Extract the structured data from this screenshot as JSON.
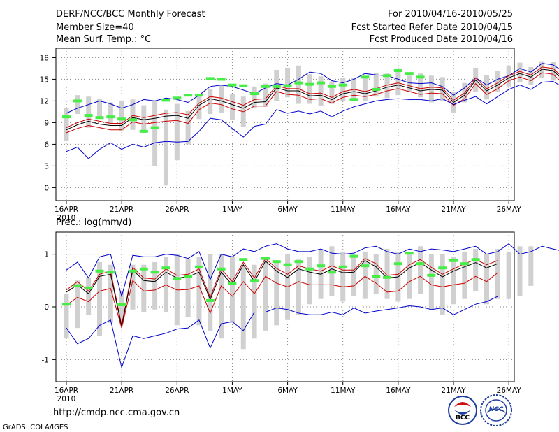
{
  "header": {
    "title": "DERF/NCC/BCC Monthly Forecast",
    "member_size": "Member Size=40",
    "variable_top": "Mean Surf. Temp.: °C",
    "forecast_period": "For 2010/04/16-2010/05/25",
    "refer_date": "Fcst Started Refer Date 2010/04/15",
    "produced_date": "Fcst Produced Date 2010/04/16"
  },
  "panel_bottom_label": "Prec.: log(mm/d)",
  "footer": {
    "url": "http://cmdp.ncc.cma.gov.cn",
    "credit": "GrADS: COLA/IGES",
    "logo_bcc_text": "BCC",
    "logo_ncc_text": "NCC"
  },
  "colors": {
    "ensemble_bar": "#d0d0d0",
    "spread_line": "#0000cc",
    "std_line": "#cc0000",
    "mean_line": "#000000",
    "obs_marker": "#44ee44",
    "grid": "#888888",
    "logo_blue": "#1f3fa0",
    "logo_red": "#d01010"
  },
  "chart_data": [
    {
      "type": "line",
      "title": "Mean Surf. Temp.: °C",
      "x_ticks": [
        "16APR",
        "21APR",
        "26APR",
        "1MAY",
        "6MAY",
        "11MAY",
        "16MAY",
        "21MAY",
        "26MAY"
      ],
      "x_tick_sub": "2010",
      "ylim": [
        -1.8,
        19.3
      ],
      "y_ticks": [
        0,
        3,
        6,
        9,
        12,
        15,
        18
      ],
      "grid": true,
      "days": 40,
      "series": [
        {
          "name": "max",
          "values": [
            10.3,
            11.0,
            11.5,
            12.0,
            11.6,
            11.0,
            11.5,
            12.2,
            12.0,
            12.4,
            12.2,
            11.8,
            12.8,
            14.0,
            14.2,
            14.0,
            13.5,
            13.0,
            13.8,
            14.4,
            14.2,
            15.0,
            16.0,
            15.8,
            14.8,
            14.5,
            15.0,
            15.8,
            15.6,
            15.5,
            15.0,
            14.5,
            14.4,
            14.5,
            14.0,
            12.8,
            13.8,
            15.2,
            14.2,
            15.0,
            15.5,
            16.5,
            16.0,
            17.2,
            17.0,
            16.0
          ]
        },
        {
          "name": "upper",
          "values": [
            8.3,
            9.0,
            9.5,
            9.2,
            8.9,
            8.9,
            10.0,
            9.7,
            10.0,
            10.3,
            10.4,
            10.1,
            11.7,
            12.6,
            12.4,
            11.9,
            11.4,
            12.2,
            12.3,
            14.1,
            13.7,
            13.7,
            13.0,
            13.1,
            12.5,
            13.3,
            13.6,
            13.3,
            13.7,
            14.2,
            14.5,
            14.1,
            13.7,
            13.9,
            13.8,
            12.1,
            13.1,
            15.2,
            13.7,
            14.5,
            15.5,
            16.1,
            15.6,
            16.7,
            16.5,
            15.1
          ]
        },
        {
          "name": "mean",
          "values": [
            8.0,
            8.7,
            9.2,
            8.8,
            8.6,
            8.6,
            9.7,
            9.4,
            9.6,
            9.9,
            10.0,
            9.6,
            11.4,
            12.3,
            12.0,
            11.5,
            11.0,
            11.8,
            11.9,
            13.8,
            13.4,
            13.4,
            12.7,
            12.8,
            12.2,
            13.0,
            13.3,
            13.0,
            13.4,
            13.9,
            14.2,
            13.8,
            13.4,
            13.6,
            13.5,
            11.8,
            12.8,
            14.9,
            13.4,
            14.2,
            15.2,
            15.8,
            15.3,
            16.4,
            16.2,
            14.8
          ]
        },
        {
          "name": "lower",
          "values": [
            7.6,
            8.2,
            8.6,
            8.3,
            8.0,
            8.0,
            9.1,
            8.8,
            9.0,
            9.2,
            9.3,
            8.9,
            10.8,
            11.7,
            11.5,
            10.9,
            10.5,
            11.3,
            11.3,
            13.3,
            12.9,
            12.8,
            12.2,
            12.3,
            11.7,
            12.5,
            12.8,
            12.6,
            12.9,
            13.4,
            13.7,
            13.3,
            12.9,
            13.1,
            13.0,
            11.4,
            12.3,
            14.4,
            12.9,
            13.7,
            14.8,
            15.3,
            14.8,
            15.9,
            15.7,
            14.3
          ]
        },
        {
          "name": "min",
          "values": [
            5.0,
            5.6,
            4.0,
            5.3,
            6.2,
            5.3,
            6.0,
            5.6,
            6.2,
            6.4,
            6.3,
            6.4,
            7.8,
            9.6,
            9.4,
            8.2,
            7.0,
            8.5,
            8.8,
            10.8,
            10.3,
            10.6,
            10.2,
            10.6,
            9.8,
            10.6,
            11.2,
            11.6,
            12.0,
            12.2,
            12.3,
            12.2,
            12.2,
            12.0,
            12.3,
            11.5,
            12.1,
            12.6,
            11.6,
            12.6,
            13.6,
            14.2,
            13.6,
            14.6,
            14.7,
            13.8
          ]
        }
      ],
      "ensemble_boxes": [
        [
          6.5,
          11.0
        ],
        [
          10.2,
          12.8
        ],
        [
          8.3,
          12.6
        ],
        [
          9.8,
          12.3
        ],
        [
          8.8,
          11.8
        ],
        [
          7.9,
          12.0
        ],
        [
          8.0,
          12.2
        ],
        [
          7.6,
          11.4
        ],
        [
          3.0,
          12.0
        ],
        [
          0.3,
          10.8
        ],
        [
          3.8,
          11.6
        ],
        [
          6.0,
          10.6
        ],
        [
          9.5,
          13.0
        ],
        [
          10.2,
          13.6
        ],
        [
          10.4,
          14.2
        ],
        [
          9.4,
          13.0
        ],
        [
          8.4,
          12.6
        ],
        [
          11.0,
          14.0
        ],
        [
          11.2,
          14.4
        ],
        [
          12.0,
          16.3
        ],
        [
          12.5,
          16.6
        ],
        [
          11.6,
          16.9
        ],
        [
          11.6,
          15.7
        ],
        [
          11.3,
          15.4
        ],
        [
          11.6,
          14.7
        ],
        [
          12.0,
          15.2
        ],
        [
          12.2,
          15.2
        ],
        [
          12.0,
          15.3
        ],
        [
          12.6,
          15.9
        ],
        [
          12.4,
          15.8
        ],
        [
          12.8,
          16.4
        ],
        [
          13.2,
          15.5
        ],
        [
          12.5,
          15.8
        ],
        [
          11.8,
          15.5
        ],
        [
          12.0,
          15.3
        ],
        [
          10.4,
          13.2
        ],
        [
          11.8,
          14.5
        ],
        [
          13.2,
          16.6
        ],
        [
          12.2,
          15.6
        ],
        [
          13.2,
          16.2
        ],
        [
          14.0,
          16.9
        ],
        [
          14.6,
          17.3
        ],
        [
          14.2,
          16.7
        ],
        [
          15.2,
          17.5
        ],
        [
          14.8,
          17.4
        ],
        [
          13.9,
          16.4
        ]
      ],
      "observations": [
        9.8,
        12.0,
        10.0,
        9.7,
        9.8,
        9.5,
        9.4,
        7.8,
        8.3,
        12.1,
        12.4,
        12.8,
        12.8,
        15.1,
        15.0,
        14.2,
        14.1,
        13.0,
        14.0,
        14.0,
        14.1,
        14.5,
        14.3,
        14.5,
        14.0,
        14.2,
        12.2,
        15.3,
        13.6,
        15.5,
        16.2,
        15.8,
        15.3
      ]
    },
    {
      "type": "line",
      "title": "Prec.: log(mm/d)",
      "x_ticks": [
        "16APR",
        "21APR",
        "26APR",
        "1MAY",
        "6MAY",
        "11MAY",
        "16MAY",
        "21MAY",
        "26MAY"
      ],
      "x_tick_sub": "2010",
      "ylim": [
        -1.42,
        1.42
      ],
      "y_ticks": [
        -1,
        0,
        1
      ],
      "grid": true,
      "days": 40,
      "series": [
        {
          "name": "max",
          "values": [
            0.7,
            0.85,
            0.55,
            0.95,
            1.0,
            0.2,
            0.98,
            0.95,
            0.95,
            1.0,
            0.98,
            0.92,
            1.05,
            0.52,
            1.0,
            0.95,
            1.1,
            1.05,
            1.15,
            1.2,
            1.1,
            1.05,
            1.05,
            1.1,
            1.02,
            1.0,
            1.02,
            1.12,
            1.15,
            1.05,
            1.0,
            1.1,
            1.05,
            1.1,
            1.08,
            1.05,
            1.1,
            1.15,
            1.0,
            1.05,
            1.2,
            1.0,
            1.05,
            1.15,
            1.1,
            1.05
          ]
        },
        {
          "name": "upper",
          "values": [
            0.32,
            0.48,
            0.3,
            0.62,
            0.68,
            -0.35,
            0.75,
            0.55,
            0.53,
            0.72,
            0.6,
            0.62,
            0.72,
            0.18,
            0.72,
            0.48,
            0.85,
            0.55,
            0.92,
            0.73,
            0.62,
            0.78,
            0.72,
            0.68,
            0.78,
            0.7,
            0.7,
            0.92,
            0.82,
            0.6,
            0.62,
            0.8,
            0.9,
            0.75,
            0.62,
            0.72,
            0.82,
            0.9,
            0.8,
            0.88
          ]
        },
        {
          "name": "mean",
          "values": [
            0.28,
            0.42,
            0.25,
            0.58,
            0.62,
            -0.38,
            0.7,
            0.5,
            0.48,
            0.66,
            0.55,
            0.57,
            0.66,
            0.14,
            0.66,
            0.42,
            0.8,
            0.48,
            0.87,
            0.68,
            0.56,
            0.72,
            0.66,
            0.62,
            0.72,
            0.65,
            0.66,
            0.88,
            0.76,
            0.55,
            0.57,
            0.74,
            0.84,
            0.7,
            0.57,
            0.68,
            0.76,
            0.84,
            0.74,
            0.82
          ]
        },
        {
          "name": "lower",
          "values": [
            0.03,
            0.18,
            0.1,
            0.3,
            0.35,
            -0.4,
            0.5,
            0.3,
            0.32,
            0.42,
            0.32,
            0.33,
            0.4,
            -0.12,
            0.4,
            0.2,
            0.48,
            0.25,
            0.58,
            0.45,
            0.38,
            0.48,
            0.42,
            0.42,
            0.42,
            0.38,
            0.4,
            0.58,
            0.45,
            0.28,
            0.3,
            0.48,
            0.58,
            0.42,
            0.38,
            0.42,
            0.45,
            0.58,
            0.48,
            0.65
          ]
        },
        {
          "name": "min",
          "values": [
            -0.4,
            -0.7,
            -0.6,
            -0.35,
            -0.25,
            -1.15,
            -0.55,
            -0.6,
            -0.55,
            -0.5,
            -0.42,
            -0.4,
            -0.25,
            -0.78,
            -0.32,
            -0.28,
            -0.45,
            -0.1,
            -0.1,
            -0.02,
            -0.05,
            -0.12,
            -0.15,
            -0.15,
            -0.1,
            -0.15,
            -0.02,
            -0.12,
            -0.08,
            -0.05,
            -0.02,
            0.02,
            0.0,
            -0.05,
            -0.02,
            -0.15,
            -0.05,
            0.05,
            0.1,
            0.2
          ]
        }
      ],
      "ensemble_boxes": [
        [
          -0.6,
          0.25
        ],
        [
          -0.4,
          0.5
        ],
        [
          -0.15,
          0.55
        ],
        [
          -0.55,
          0.85
        ],
        [
          -0.3,
          0.8
        ],
        [
          -0.32,
          0.3
        ],
        [
          -0.05,
          0.8
        ],
        [
          -0.1,
          0.8
        ],
        [
          -0.05,
          0.85
        ],
        [
          -0.1,
          0.95
        ],
        [
          -0.35,
          1.0
        ],
        [
          -0.2,
          0.9
        ],
        [
          -0.35,
          0.95
        ],
        [
          -0.45,
          1.0
        ],
        [
          -0.6,
          1.0
        ],
        [
          -0.3,
          0.95
        ],
        [
          -0.8,
          0.8
        ],
        [
          -0.6,
          0.8
        ],
        [
          -0.45,
          0.9
        ],
        [
          -0.35,
          0.85
        ],
        [
          -0.25,
          1.0
        ],
        [
          -0.15,
          0.9
        ],
        [
          0.05,
          0.95
        ],
        [
          0.15,
          1.1
        ],
        [
          0.2,
          1.15
        ],
        [
          0.1,
          1.05
        ],
        [
          0.2,
          1.0
        ],
        [
          0.15,
          1.05
        ],
        [
          0.25,
          1.0
        ],
        [
          0.15,
          1.1
        ],
        [
          0.1,
          1.05
        ],
        [
          0.15,
          1.05
        ],
        [
          0.25,
          1.15
        ],
        [
          -0.05,
          1.0
        ],
        [
          -0.15,
          1.0
        ],
        [
          0.05,
          0.95
        ],
        [
          0.15,
          1.05
        ],
        [
          0.3,
          1.1
        ],
        [
          0.05,
          1.0
        ],
        [
          0.15,
          1.1
        ],
        [
          0.15,
          1.05
        ],
        [
          0.2,
          1.15
        ],
        [
          0.4,
          1.15
        ]
      ],
      "observations": [
        0.05,
        0.4,
        0.36,
        0.68,
        0.66,
        0.04,
        0.68,
        0.72,
        0.66,
        0.74,
        0.54,
        0.58,
        0.76,
        0.12,
        0.72,
        0.44,
        0.9,
        0.5,
        0.92,
        0.86,
        0.8,
        0.86,
        0.72,
        0.78,
        0.66,
        0.76,
        0.96,
        0.78,
        0.58,
        0.56,
        0.82,
        1.02,
        0.82,
        0.6,
        0.74,
        0.88,
        0.82,
        0.9
      ]
    }
  ]
}
